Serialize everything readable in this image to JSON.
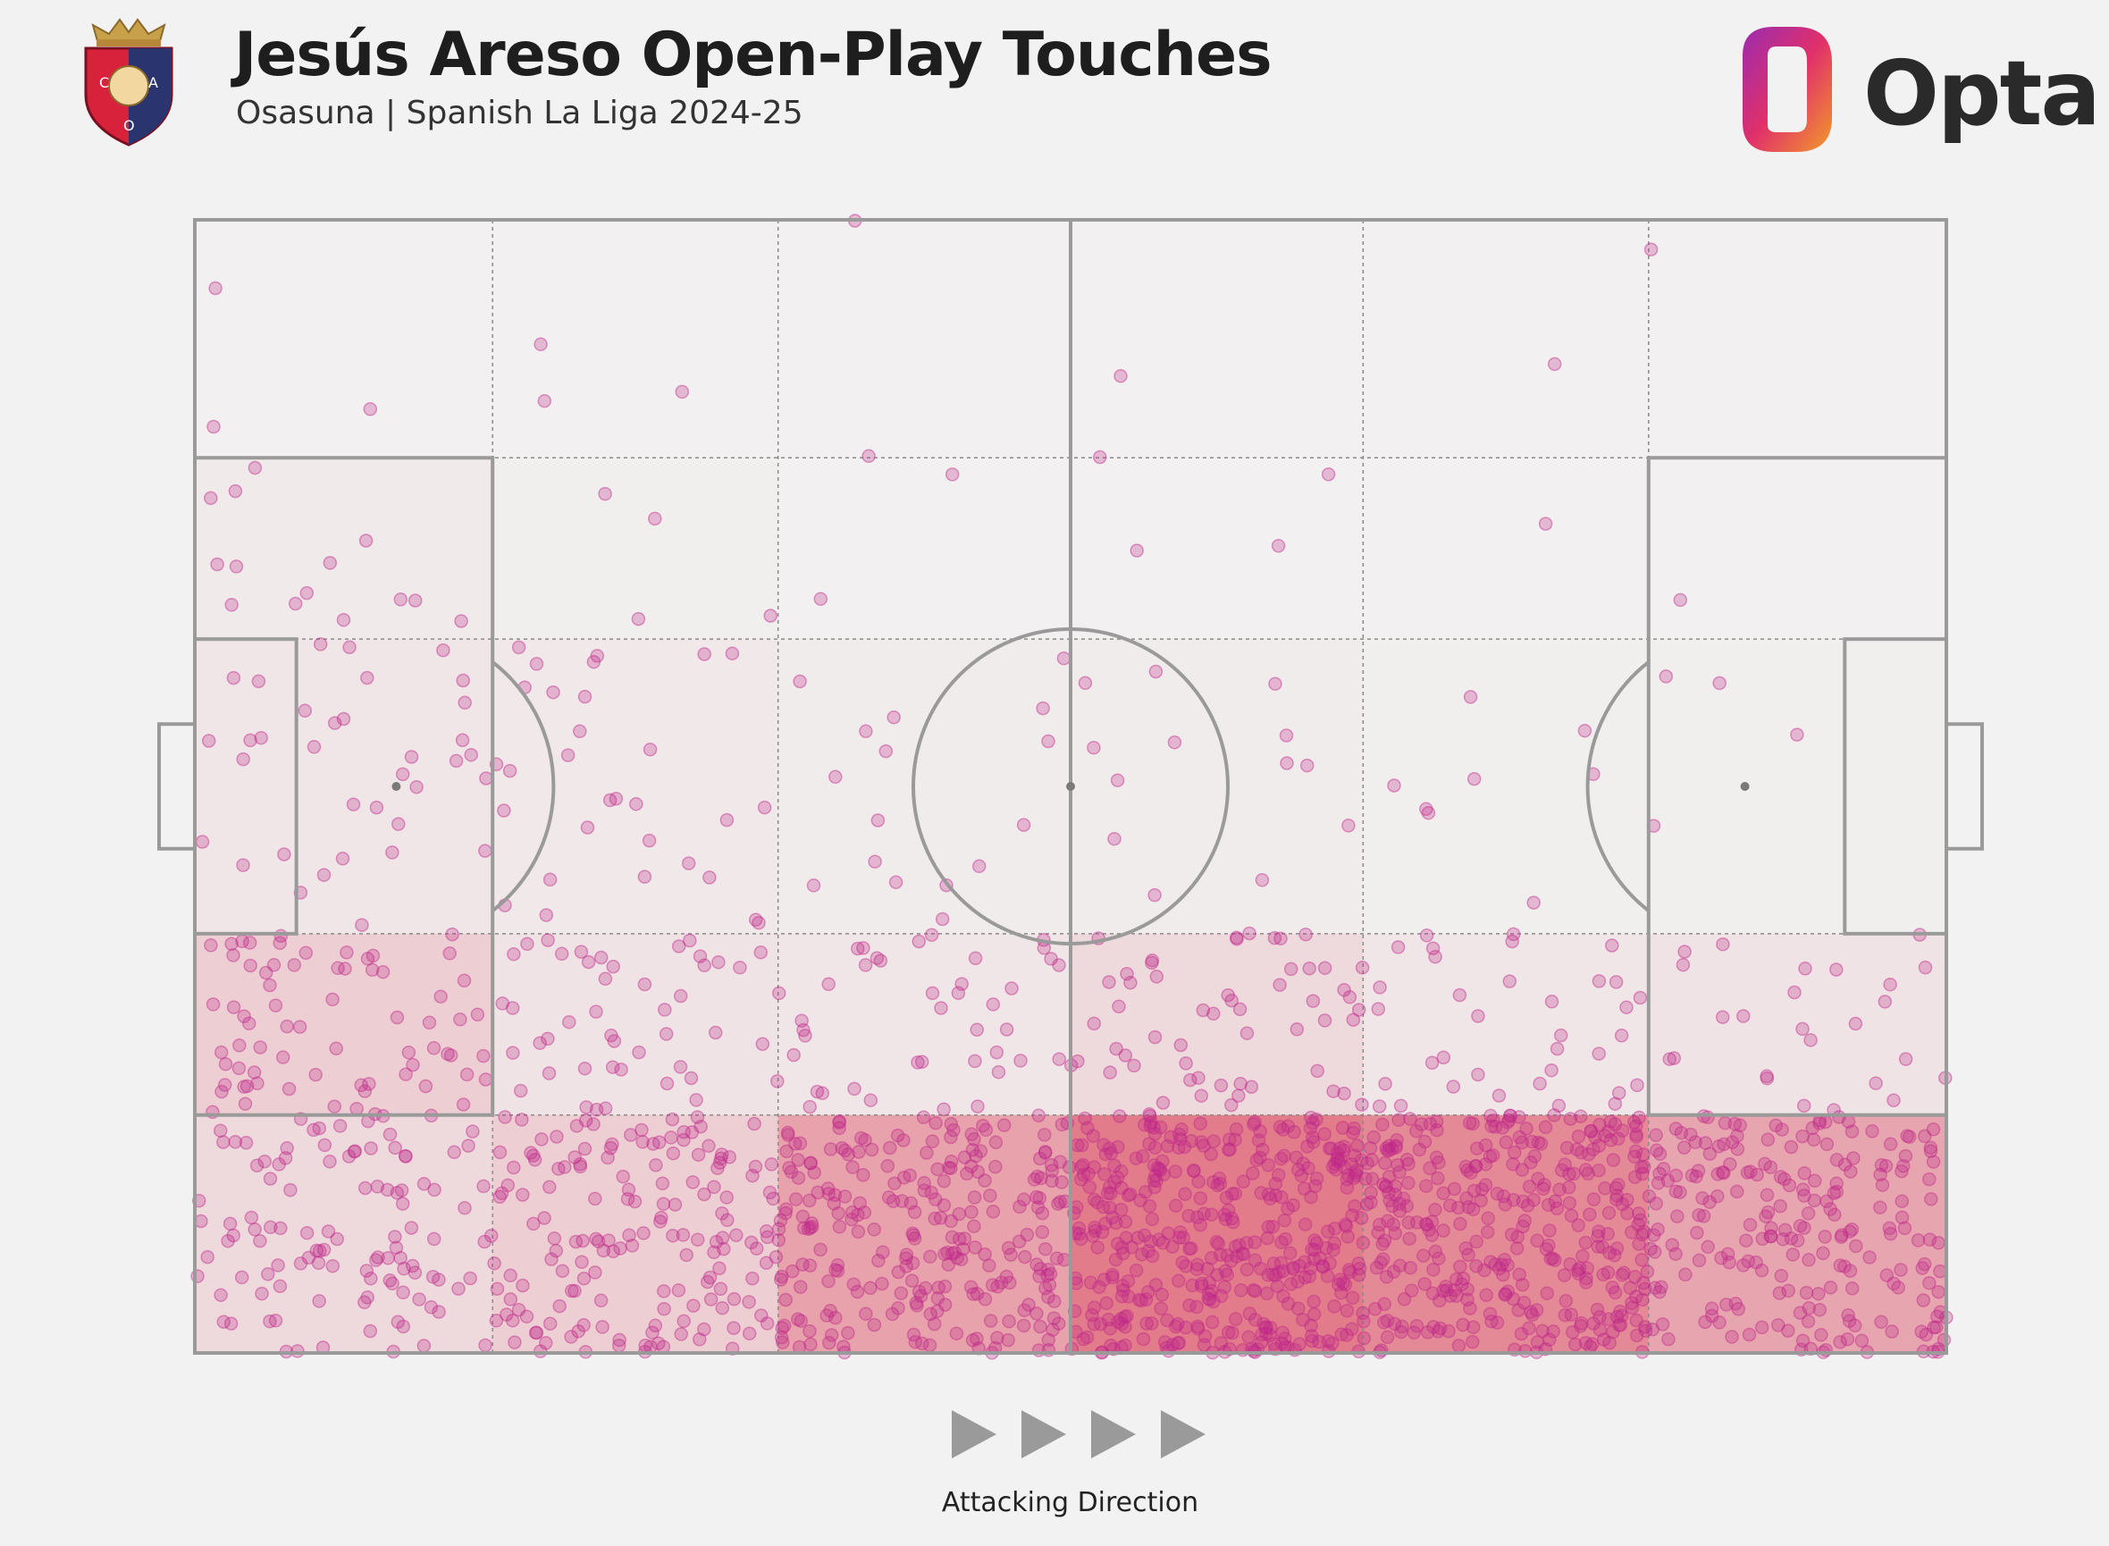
{
  "header": {
    "title": "Jesús Areso Open-Play Touches",
    "subtitle": "Osasuna | Spanish La Liga 2024-25",
    "crest_letters": [
      "C",
      "A",
      "O"
    ],
    "brand": "Opta"
  },
  "footer": {
    "direction_label": "Attacking Direction"
  },
  "colors": {
    "background": "#f2f2f2",
    "pitch_lines": "#9a9a9a",
    "dot_color": "#c0288a",
    "zone_color": "#d8344a"
  },
  "chart_data": {
    "type": "scatter",
    "title": "Jesús Areso Open-Play Touches",
    "subtitle": "Osasuna | Spanish La Liga 2024-25",
    "xlim": [
      0,
      100
    ],
    "ylim": [
      0,
      100
    ],
    "x_zone_edges": [
      0,
      17,
      33.3,
      50,
      66.7,
      83,
      100
    ],
    "y_zone_edges": [
      0,
      21,
      37,
      63,
      79,
      100
    ],
    "zone_intensity": [
      [
        0.12,
        0.18,
        0.42,
        0.62,
        0.55,
        0.4
      ],
      [
        0.18,
        0.08,
        0.06,
        0.12,
        0.06,
        0.08
      ],
      [
        0.06,
        0.05,
        0.03,
        0.03,
        0.02,
        0.02
      ],
      [
        0.04,
        0.02,
        0.01,
        0.01,
        0.01,
        0.01
      ],
      [
        0.01,
        0.01,
        0.01,
        0.01,
        0.01,
        0.01
      ]
    ],
    "zone_counts": [
      [
        110,
        160,
        260,
        420,
        360,
        220
      ],
      [
        70,
        45,
        40,
        55,
        35,
        25
      ],
      [
        35,
        30,
        16,
        14,
        8,
        4
      ],
      [
        14,
        4,
        2,
        3,
        1,
        1
      ],
      [
        3,
        3,
        2,
        2,
        1,
        1
      ]
    ],
    "grid": true,
    "legend": "none"
  }
}
